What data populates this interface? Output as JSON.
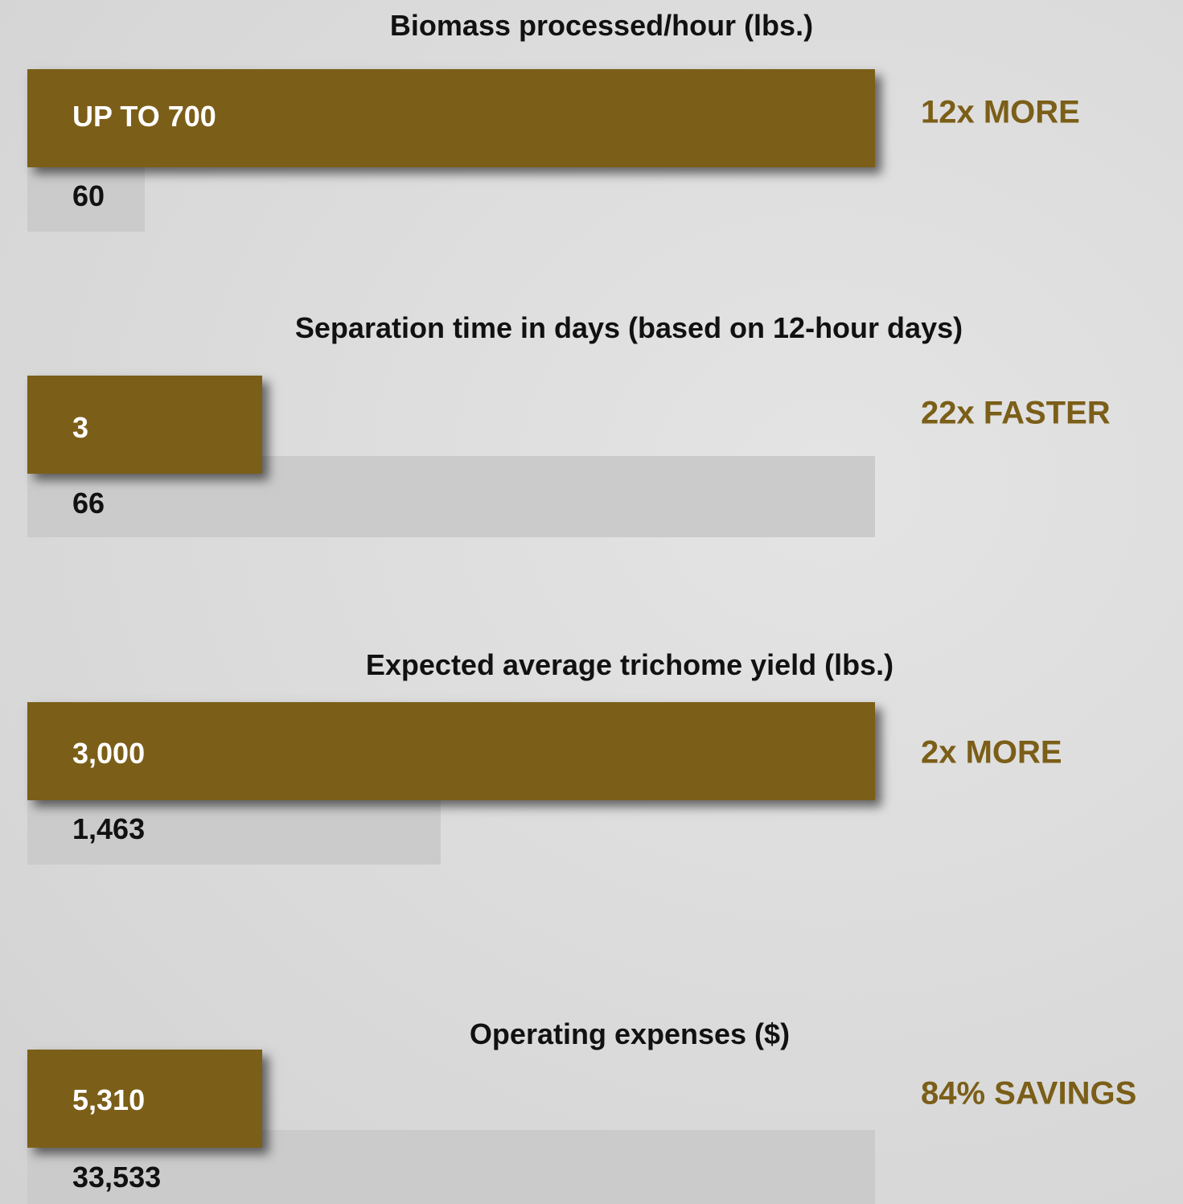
{
  "panels": [
    {
      "title": "Biomass processed/hour (lbs.)",
      "primary": "UP TO 700",
      "secondary": "60",
      "comparison": "12x MORE"
    },
    {
      "title": "Separation time in days (based on 12-hour days)",
      "primary": "3",
      "secondary": "66",
      "comparison": "22x FASTER"
    },
    {
      "title": "Expected average trichome yield (lbs.)",
      "primary": "3,000",
      "secondary": "1,463",
      "comparison": "2x MORE"
    },
    {
      "title": "Operating expenses ($)",
      "primary": "5,310",
      "secondary": "33,533",
      "comparison": "84% SAVINGS"
    }
  ]
}
